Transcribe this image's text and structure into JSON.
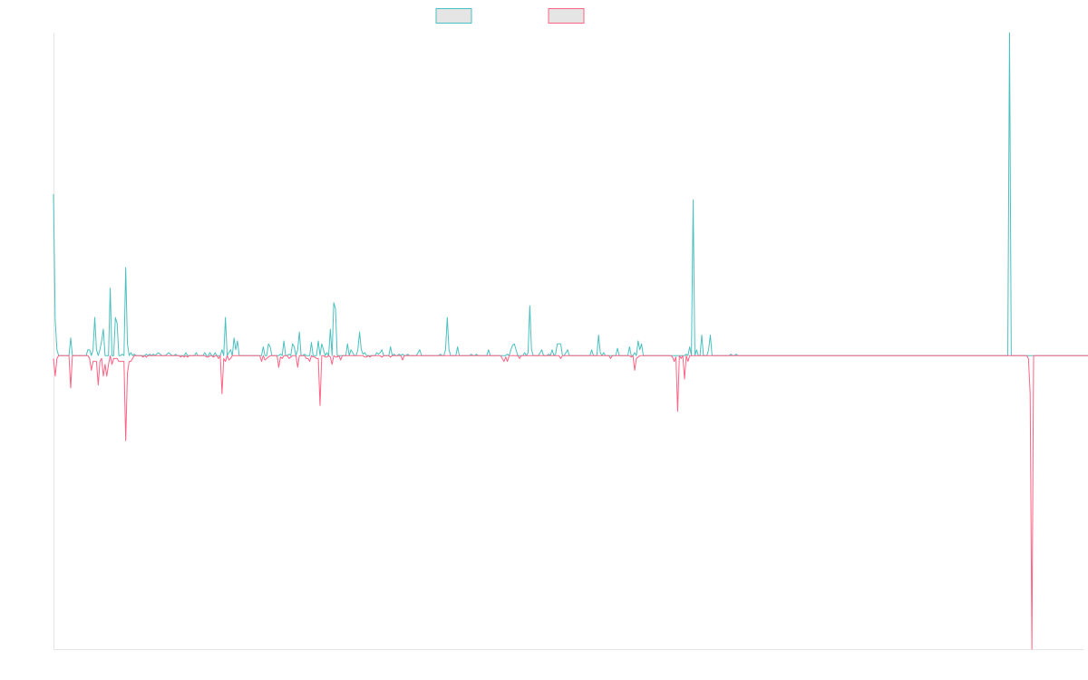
{
  "chart_data": {
    "type": "line",
    "title": "",
    "xlabel": "",
    "ylabel": "",
    "x_count": 600,
    "ylim": [
      -1,
      1.1
    ],
    "grid": false,
    "legend_position": "top-center",
    "series": [
      {
        "color": "#4bc0c0",
        "values": [
          0.55,
          0.12,
          0.02,
          0,
          0,
          0,
          0,
          0,
          0,
          0,
          0.06,
          0,
          0,
          0,
          0,
          0,
          0,
          0,
          0,
          0,
          0.02,
          0.02,
          0,
          0.02,
          0.13,
          0.02,
          0,
          0.02,
          0.05,
          0.09,
          0,
          0,
          0,
          0.23,
          0,
          0,
          0.13,
          0.11,
          0,
          0,
          0.005,
          0,
          0.3,
          0.04,
          0,
          0.01,
          0,
          0.005,
          0,
          0,
          0,
          0,
          0,
          0,
          0.005,
          0,
          0.005,
          0,
          0.005,
          0,
          0.005,
          0.01,
          0.005,
          0,
          0,
          0,
          0.005,
          0.01,
          0.005,
          0,
          0,
          0.005,
          0,
          0,
          0,
          0,
          0,
          0.01,
          0,
          0,
          0,
          0,
          0,
          0.01,
          0,
          0,
          0,
          0,
          0.01,
          0,
          0,
          0.01,
          0,
          0,
          0.01,
          0,
          0,
          0,
          0.02,
          0,
          0.13,
          0,
          0.01,
          0.02,
          0,
          0.06,
          0.02,
          0.05,
          0,
          0,
          0,
          0,
          0,
          0,
          0,
          0,
          0,
          0,
          0,
          0,
          0,
          0,
          0.03,
          0,
          0,
          0.04,
          0.03,
          0,
          0,
          0,
          0,
          0,
          0.005,
          0,
          0.05,
          0,
          0,
          0.005,
          0,
          0.04,
          0.03,
          0,
          0.02,
          0.08,
          0,
          0,
          0.005,
          0,
          0,
          0,
          0.045,
          0,
          0,
          0,
          0.05,
          0,
          0.04,
          0.02,
          0,
          0.01,
          0,
          0.09,
          0,
          0.18,
          0.16,
          0,
          0,
          0,
          0,
          0,
          0,
          0.04,
          0,
          0.02,
          0.01,
          0,
          0,
          0.02,
          0.08,
          0.02,
          0.005,
          0.01,
          0,
          0,
          0,
          0,
          0,
          0,
          0.01,
          0.005,
          0.01,
          0.02,
          0,
          0,
          0,
          0,
          0.03,
          0,
          0.005,
          0,
          0,
          0.005,
          0,
          0.005,
          0,
          0,
          0.005,
          0,
          0,
          0,
          0,
          0,
          0.01,
          0.02,
          0,
          0,
          0,
          0,
          0,
          0,
          0,
          0,
          0,
          0,
          0,
          0.005,
          0,
          0,
          0.02,
          0.13,
          0.02,
          0,
          0,
          0,
          0,
          0.03,
          0,
          0,
          0,
          0,
          0,
          0,
          0,
          0.005,
          0,
          0,
          0.005,
          0,
          0,
          0,
          0,
          0,
          0,
          0.02,
          0,
          0,
          0,
          0,
          0,
          0,
          0,
          0,
          0,
          0,
          0.005,
          0,
          0.02,
          0.035,
          0.04,
          0.02,
          0,
          0,
          0,
          0,
          0.01,
          0,
          0.01,
          0.17,
          0.02,
          0,
          0,
          0,
          0,
          0.01,
          0.02,
          0,
          0,
          0,
          0.005,
          0,
          0.02,
          0,
          0.005,
          0.04,
          0.04,
          0.04,
          0,
          0,
          0.01,
          0.02,
          0,
          0,
          0,
          0,
          0,
          0,
          0,
          0,
          0,
          0,
          0,
          0,
          0,
          0.02,
          0,
          0,
          0,
          0.07,
          0.01,
          0,
          0.01,
          0,
          0,
          0,
          0,
          0,
          0,
          0,
          0.025,
          0,
          0,
          0,
          0,
          0,
          0,
          0.03,
          0,
          0,
          0.01,
          0,
          0.05,
          0.02,
          0.04,
          0,
          0,
          0,
          0,
          0,
          0,
          0,
          0,
          0,
          0,
          0,
          0,
          0,
          0,
          0,
          0,
          0,
          0,
          0,
          0,
          0,
          0,
          0,
          0,
          0,
          0.005,
          0,
          0.03,
          0,
          0.53,
          0,
          0.02,
          0,
          0,
          0.07,
          0,
          0,
          0,
          0.02,
          0.07,
          0,
          0,
          0,
          0,
          0,
          0,
          0,
          0,
          0,
          0,
          0,
          0.005,
          0,
          0,
          0.005,
          0,
          0,
          0,
          0,
          0,
          0,
          0,
          0,
          0,
          0,
          0,
          0,
          0,
          0,
          0,
          0,
          0,
          0,
          0,
          0,
          0,
          0,
          0,
          0,
          0,
          0,
          0,
          0,
          0,
          0,
          0,
          0,
          0,
          0,
          0,
          0,
          0,
          0,
          0,
          0,
          0,
          0,
          0,
          0,
          0,
          0,
          0,
          0,
          0,
          0,
          0,
          0,
          0,
          0,
          0,
          0,
          0,
          0,
          0,
          0,
          0,
          0,
          0,
          0,
          0,
          0,
          0,
          0,
          0,
          0,
          0,
          0,
          0,
          0,
          0,
          0,
          0,
          0,
          0,
          0,
          0,
          0,
          0,
          0,
          0,
          0,
          0,
          0,
          0,
          0,
          0,
          0,
          0,
          0,
          0,
          0,
          0,
          0,
          0,
          0,
          0,
          0,
          0,
          0,
          0,
          0,
          0,
          0,
          0,
          0,
          0,
          0,
          0,
          0,
          0,
          0,
          0,
          0,
          0,
          0,
          0,
          0,
          0,
          0,
          0,
          0,
          0,
          0,
          0,
          0,
          0,
          0,
          0,
          0,
          0,
          0,
          0,
          0,
          0,
          0,
          0,
          0,
          0,
          0,
          0,
          0,
          0,
          0,
          0,
          0,
          0,
          0,
          0,
          0,
          0,
          0,
          0,
          0,
          1.1,
          0,
          0,
          0,
          0,
          0,
          0,
          0,
          0,
          0,
          0,
          0,
          0,
          0,
          0,
          0,
          0,
          0,
          0,
          0,
          0,
          0,
          0,
          0,
          0,
          0,
          0,
          0,
          0,
          0,
          0,
          0,
          0,
          0,
          0,
          0,
          0,
          0,
          0,
          0,
          0,
          0,
          0,
          0,
          0,
          0,
          0,
          0,
          0,
          0,
          0,
          0,
          0,
          0,
          0,
          0,
          0,
          0,
          0,
          0,
          0,
          0,
          0,
          0
        ]
      },
      {
        "color": "#ff6384",
        "values": [
          -0.01,
          -0.07,
          -0.01,
          0,
          0,
          0,
          0,
          0,
          0,
          0,
          -0.11,
          0,
          0,
          0,
          0,
          0,
          0,
          0,
          0,
          0,
          0,
          -0.01,
          -0.05,
          -0.02,
          -0.02,
          -0.02,
          -0.1,
          -0.02,
          -0.01,
          -0.07,
          -0.03,
          -0.07,
          -0.03,
          0,
          -0.03,
          -0.01,
          -0.01,
          -0.01,
          -0.02,
          -0.02,
          -0.02,
          -0.02,
          -0.29,
          -0.06,
          -0.02,
          -0.02,
          -0.01,
          0,
          0,
          0,
          0,
          0,
          -0.005,
          0,
          -0.005,
          0,
          0,
          0,
          0,
          0,
          0,
          0,
          0,
          0,
          0,
          0,
          0,
          0,
          0,
          0,
          0,
          0,
          0,
          0,
          -0.005,
          0,
          -0.005,
          0,
          -0.005,
          0,
          0,
          0,
          0,
          0,
          0,
          0,
          0,
          0,
          0,
          -0.005,
          -0.005,
          0,
          0,
          -0.005,
          0,
          0,
          -0.01,
          0,
          -0.13,
          -0.01,
          -0.02,
          0,
          -0.015,
          -0.01,
          0,
          0,
          0,
          0,
          0,
          0,
          0,
          0,
          0,
          0,
          0,
          0,
          0,
          0,
          0,
          0,
          0,
          -0.02,
          0,
          -0.015,
          -0.01,
          -0.005,
          0,
          0,
          0,
          0,
          0,
          -0.04,
          -0.005,
          -0.01,
          0,
          0,
          0,
          -0.01,
          -0.005,
          0,
          0,
          0,
          -0.04,
          0,
          0,
          0,
          0,
          -0.01,
          -0.01,
          -0.02,
          0,
          -0.005,
          -0.005,
          -0.01,
          -0.01,
          -0.17,
          0,
          0,
          -0.005,
          -0.005,
          0,
          -0.005,
          -0.03,
          0,
          -0.005,
          -0.005,
          0,
          -0.015,
          0,
          0,
          0,
          0,
          0,
          0,
          0,
          0,
          0,
          0,
          0,
          0,
          0,
          -0.005,
          -0.005,
          0,
          -0.005,
          0,
          0,
          0,
          0,
          0,
          0,
          -0.005,
          0,
          0,
          0,
          0,
          -0.005,
          0,
          0,
          0,
          0,
          0,
          0,
          -0.015,
          0,
          0,
          0,
          0,
          0,
          0,
          0,
          0,
          0,
          0,
          0,
          0,
          0,
          0,
          0,
          0,
          0,
          0,
          0,
          0,
          0,
          0,
          0,
          0,
          0,
          0,
          0,
          0,
          0,
          0,
          0,
          0,
          0,
          0,
          0,
          0,
          0,
          0,
          0,
          0,
          0,
          0,
          0,
          0,
          0,
          0,
          0,
          0,
          0,
          0,
          0,
          0,
          0,
          0,
          0,
          0,
          0,
          -0.01,
          -0.02,
          -0.005,
          -0.02,
          0,
          0,
          0,
          0,
          0,
          0,
          -0.01,
          0,
          0,
          0,
          0,
          0,
          0,
          0,
          0,
          0,
          0,
          0,
          0,
          0,
          0,
          0,
          0,
          0,
          0,
          0,
          0,
          0,
          0,
          0,
          -0.01,
          0,
          0,
          0,
          0,
          0,
          0,
          0,
          0,
          0,
          0,
          0,
          0,
          0,
          0,
          0,
          0,
          0,
          0,
          0,
          0,
          0,
          0,
          0,
          0,
          0,
          0,
          0,
          0,
          -0.01,
          0,
          0,
          0,
          0,
          0,
          0,
          0,
          0,
          0,
          0,
          0,
          -0.005,
          0,
          -0.05,
          -0.01,
          -0.005,
          0,
          0,
          0,
          0,
          0,
          0,
          0,
          0,
          0,
          0,
          0,
          0,
          0,
          0,
          0,
          0,
          0,
          0,
          0,
          -0.005,
          -0.02,
          -0.005,
          -0.19,
          0,
          -0.01,
          0,
          -0.08,
          0,
          -0.02,
          0,
          0,
          0,
          0,
          0,
          0,
          0,
          0,
          0,
          0,
          0,
          0,
          0,
          0,
          0,
          0,
          0,
          0,
          0,
          0,
          0,
          0,
          0,
          0,
          0,
          0,
          0,
          0,
          0,
          0,
          0,
          0,
          0,
          0,
          0,
          0,
          0,
          0,
          0,
          0,
          0,
          0,
          0,
          0,
          0,
          0,
          0,
          0,
          0,
          0,
          0,
          0,
          0,
          0,
          0,
          0,
          0,
          0,
          0,
          0,
          0,
          0,
          0,
          0,
          0,
          0,
          0,
          0,
          0,
          0,
          0,
          0,
          0,
          0,
          0,
          0,
          0,
          0,
          0,
          0,
          0,
          0,
          0,
          0,
          0,
          0,
          0,
          0,
          0,
          0,
          0,
          0,
          0,
          0,
          0,
          0,
          0,
          0,
          0,
          0,
          0,
          0,
          0,
          0,
          0,
          0,
          0,
          0,
          0,
          0,
          0,
          0,
          0,
          0,
          0,
          0,
          0,
          0,
          0,
          0,
          0,
          0,
          0,
          0,
          0,
          0,
          0,
          0,
          0,
          0,
          0,
          0,
          0,
          0,
          0,
          0,
          0,
          0,
          0,
          0,
          0,
          0,
          0,
          0,
          0,
          0,
          0,
          0,
          0,
          0,
          0,
          0,
          0,
          0,
          0,
          0,
          0,
          0,
          0,
          0,
          0,
          0,
          0,
          0,
          0,
          0,
          0,
          0,
          0,
          0,
          0,
          0,
          0,
          0,
          0,
          0,
          0,
          0,
          0,
          0,
          0,
          0,
          0,
          0,
          0,
          0,
          0,
          0,
          0,
          0,
          0,
          0,
          0,
          0,
          0,
          0,
          0,
          -0.01,
          -0.13,
          -1.0,
          0,
          0,
          0,
          0,
          0,
          0,
          0,
          0,
          0,
          0,
          0,
          0,
          0,
          0,
          0,
          0,
          0,
          0,
          0,
          0,
          0,
          0,
          0,
          0,
          0,
          0,
          0,
          0,
          0,
          0,
          0,
          0,
          0,
          0,
          0,
          0,
          0,
          0,
          0,
          0,
          0,
          0,
          0,
          0,
          0,
          0,
          0,
          0,
          0,
          0,
          0,
          0,
          0,
          0,
          0,
          0,
          0,
          0,
          0,
          0,
          0
        ]
      }
    ]
  }
}
